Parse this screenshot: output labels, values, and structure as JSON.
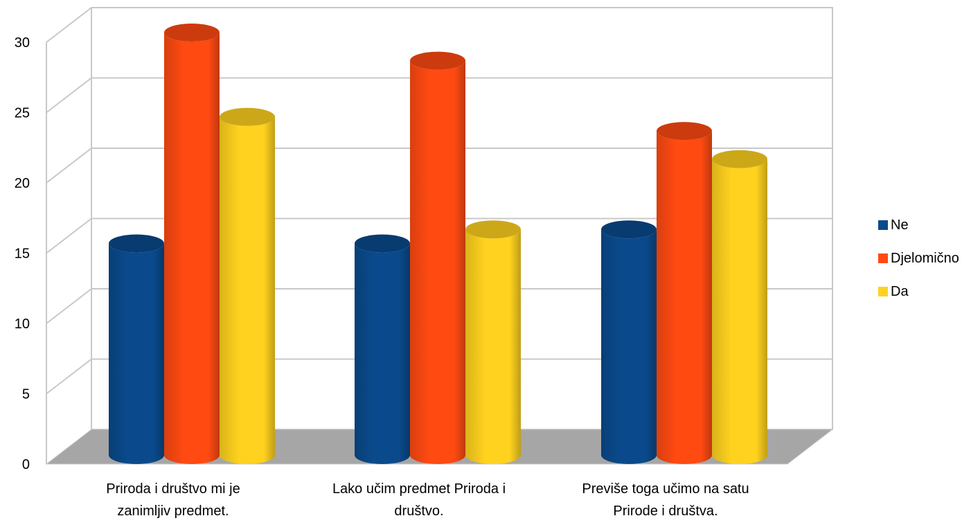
{
  "chart_data": {
    "type": "bar",
    "style": "3d-cylinder",
    "categories": [
      [
        "Priroda i društvo mi je",
        "zanimljiv predmet."
      ],
      [
        "Lako učim predmet Priroda i",
        "društvo."
      ],
      [
        "Previše toga učimo na satu",
        "Prirode i društva."
      ]
    ],
    "series": [
      {
        "name": "Ne",
        "color": "#0A4A8C",
        "values": [
          15,
          15,
          16
        ]
      },
      {
        "name": "Djelomično",
        "color": "#FF4A12",
        "values": [
          30,
          28,
          23
        ]
      },
      {
        "name": "Da",
        "color": "#FFD21F",
        "values": [
          24,
          16,
          21
        ]
      }
    ],
    "ylim": [
      0,
      30
    ],
    "yticks": [
      "0",
      "5",
      "10",
      "15",
      "20",
      "25",
      "30"
    ],
    "grid": true,
    "legend_position": "right",
    "floor_color": "#A6A6A6"
  }
}
